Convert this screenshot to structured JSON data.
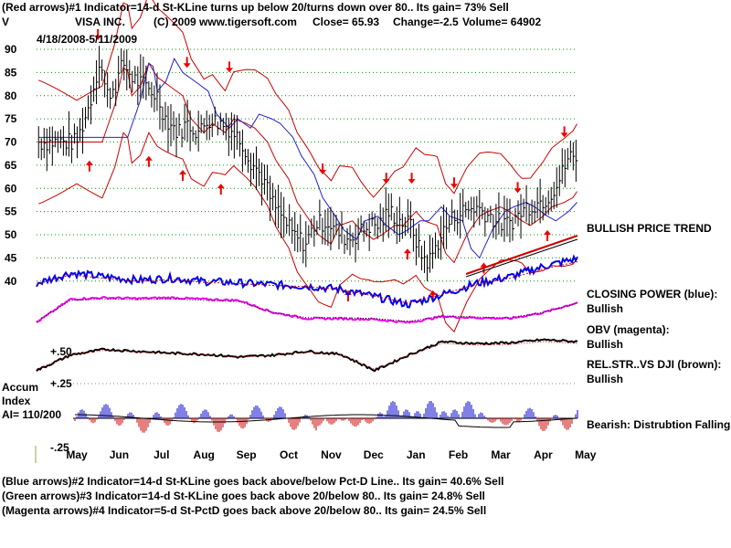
{
  "header": {
    "line1": "(Red arrows)#1 Indicator=14-d St-KLine turns up below 20/turns down over 80.. Its gain= 73% Sell",
    "symbol": "V",
    "company": "VISA INC.",
    "copyright": "(C) 2009 www.tigersoft.com",
    "close": "Close=  65.93",
    "change": "Change=-2.5",
    "volume": "Volume=  64902",
    "date_range": "4/18/2008-5/11/2009"
  },
  "labels": {
    "bullish_trend": "BULLISH PRICE TREND",
    "closing_power": "CLOSING POWER (blue):",
    "closing_power_status": "Bullish",
    "obv": "OBV (magenta):",
    "obv_status": "Bullish",
    "relstr": "REL.STR..VS DJI (brown):",
    "relstr_status": "Bullish",
    "accum_title": "Accum",
    "accum_index": "Index",
    "accum_ai": "AI= 110/200",
    "bearish": "Bearish: Distrubtion Falling.",
    "relstr_top": "+.50",
    "relstr_mid": "+.25",
    "accum_bottom": "-.25"
  },
  "footer": {
    "line2": "(Blue arrows)#2 Indicator=14-d St-KLine goes back above/below Pct-D Line.. Its gain= 40.6% Sell",
    "line3": "(Green arrows)#3 Indicator=14-d St-KLine goes back above 20/below 80.. Its gain= 24.8% Sell",
    "line4": "(Magenta arrows)#4 Indicator=5-d St-PctD goes back above 20/below 80.. Its gain= 24.5% Sell"
  },
  "colors": {
    "price": "#000000",
    "band": "#cc0000",
    "ma": "#2222cc",
    "closing_power": "#0000ee",
    "obv": "#ee00ee",
    "relstr": "#000000",
    "grid": "#009900",
    "accum_pos": "#0000cc",
    "accum_neg": "#cc0000",
    "arrow": "#ee0000",
    "trend": "#cc0000"
  },
  "chart_data": {
    "type": "line",
    "ylim": [
      35,
      92
    ],
    "y_ticks": [
      90,
      85,
      80,
      75,
      70,
      65,
      60,
      55,
      50,
      45,
      40
    ],
    "x_ticks": [
      "May",
      "Jun",
      "Jul",
      "Aug",
      "Sep",
      "Oct",
      "Nov",
      "Dec",
      "Jan",
      "Feb",
      "Mar",
      "Apr",
      "May"
    ],
    "grid": true,
    "price_series": [
      {
        "month": 0.0,
        "close": 70
      },
      {
        "month": 0.3,
        "close": 78
      },
      {
        "month": 0.55,
        "close": 88
      },
      {
        "month": 0.7,
        "close": 80
      },
      {
        "month": 0.9,
        "close": 82
      },
      {
        "month": 1.1,
        "close": 87
      },
      {
        "month": 1.3,
        "close": 84
      },
      {
        "month": 1.6,
        "close": 82
      },
      {
        "month": 1.9,
        "close": 80
      },
      {
        "month": 2.1,
        "close": 75
      },
      {
        "month": 2.4,
        "close": 72
      },
      {
        "month": 2.6,
        "close": 74
      },
      {
        "month": 2.9,
        "close": 72
      },
      {
        "month": 3.1,
        "close": 75
      },
      {
        "month": 3.4,
        "close": 74
      },
      {
        "month": 3.6,
        "close": 73
      },
      {
        "month": 3.9,
        "close": 70
      },
      {
        "month": 4.1,
        "close": 66
      },
      {
        "month": 4.4,
        "close": 62
      },
      {
        "month": 4.6,
        "close": 57
      },
      {
        "month": 4.9,
        "close": 53
      },
      {
        "month": 5.1,
        "close": 50
      },
      {
        "month": 5.4,
        "close": 48
      },
      {
        "month": 5.6,
        "close": 52
      },
      {
        "month": 5.9,
        "close": 53
      },
      {
        "month": 6.1,
        "close": 51
      },
      {
        "month": 6.4,
        "close": 49
      },
      {
        "month": 6.6,
        "close": 50
      },
      {
        "month": 6.9,
        "close": 52
      },
      {
        "month": 7.1,
        "close": 52
      },
      {
        "month": 7.4,
        "close": 55
      },
      {
        "month": 7.6,
        "close": 53
      },
      {
        "month": 7.9,
        "close": 52
      },
      {
        "month": 8.1,
        "close": 46
      },
      {
        "month": 8.3,
        "close": 44
      },
      {
        "month": 8.6,
        "close": 50
      },
      {
        "month": 8.9,
        "close": 54
      },
      {
        "month": 9.1,
        "close": 55
      },
      {
        "month": 9.4,
        "close": 56
      },
      {
        "month": 9.6,
        "close": 55
      },
      {
        "month": 9.9,
        "close": 53
      },
      {
        "month": 10.1,
        "close": 52
      },
      {
        "month": 10.4,
        "close": 54
      },
      {
        "month": 10.6,
        "close": 56
      },
      {
        "month": 10.9,
        "close": 57
      },
      {
        "month": 11.1,
        "close": 58
      },
      {
        "month": 11.4,
        "close": 62
      },
      {
        "month": 11.6,
        "close": 67
      },
      {
        "month": 11.8,
        "close": 66
      }
    ],
    "series": [
      {
        "name": "CLOSING POWER (blue)",
        "values": [
          0.62,
          0.78,
          0.72,
          0.67,
          0.7,
          0.65,
          0.63,
          0.6,
          0.58,
          0.53,
          0.42,
          0.3,
          0.45,
          0.62,
          0.72,
          0.88,
          1.0
        ]
      },
      {
        "name": "OBV (magenta)",
        "values": [
          0.2,
          0.78,
          0.82,
          0.8,
          0.82,
          0.78,
          0.75,
          0.45,
          0.3,
          0.3,
          0.28,
          0.2,
          0.35,
          0.32,
          0.3,
          0.45,
          0.7
        ]
      },
      {
        "name": "REL.STR..VS DJI (brown)",
        "values": [
          0.2,
          0.6,
          0.75,
          0.7,
          0.65,
          0.62,
          0.55,
          0.6,
          0.7,
          0.62,
          0.2,
          0.6,
          0.95,
          0.9,
          0.92,
          1.0,
          0.95
        ]
      }
    ]
  }
}
